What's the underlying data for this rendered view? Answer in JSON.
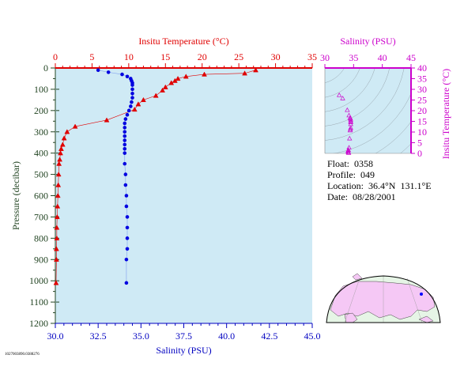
{
  "info": {
    "float_label": "Float:",
    "float_value": "0358",
    "profile_label": "Profile:",
    "profile_value": "049",
    "location_label": "Location:",
    "location_value": "36.4°N  131.1°E",
    "date_label": "Date:",
    "date_value": "08/28/2001"
  },
  "id_tag": "1027003890.0388276",
  "colors": {
    "plot_bg": "#cfeaf5",
    "temperature": "#e00000",
    "salinity": "#0000e0",
    "pressure_axis": "#224422",
    "bottom_axis": "#0000c0",
    "salinity_inset": "#cc00cc",
    "map_land": "#f5c8f5",
    "map_ocean": "#e6f5e6"
  },
  "chart_data": [
    {
      "type": "scatter",
      "name": "profile",
      "ylabel": "Pressure (decibar)",
      "ylim": [
        0,
        1200
      ],
      "y_ticks": [
        0,
        100,
        200,
        300,
        400,
        500,
        600,
        700,
        800,
        900,
        1000,
        1100,
        1200
      ],
      "y_inverted": true,
      "top_axis": {
        "label": "Insitu Temperature (°C)",
        "range": [
          0,
          35
        ],
        "ticks": [
          0,
          5,
          10,
          15,
          20,
          25,
          30,
          35
        ]
      },
      "bottom_axis": {
        "label": "Salinity (PSU)",
        "range": [
          30,
          45
        ],
        "ticks": [
          "30.0",
          "32.5",
          "35.0",
          "37.5",
          "40.0",
          "42.5",
          "45.0"
        ]
      },
      "series": [
        {
          "name": "Insitu Temperature",
          "marker": "triangle",
          "points": [
            {
              "t": 27.3,
              "p": 10
            },
            {
              "t": 25.8,
              "p": 25
            },
            {
              "t": 20.3,
              "p": 30
            },
            {
              "t": 17.8,
              "p": 40
            },
            {
              "t": 16.7,
              "p": 50
            },
            {
              "t": 16.3,
              "p": 60
            },
            {
              "t": 15.8,
              "p": 70
            },
            {
              "t": 15.0,
              "p": 90
            },
            {
              "t": 14.6,
              "p": 105
            },
            {
              "t": 13.7,
              "p": 130
            },
            {
              "t": 12.0,
              "p": 150
            },
            {
              "t": 11.3,
              "p": 170
            },
            {
              "t": 10.8,
              "p": 195
            },
            {
              "t": 7.0,
              "p": 245
            },
            {
              "t": 2.7,
              "p": 275
            },
            {
              "t": 1.6,
              "p": 300
            },
            {
              "t": 1.2,
              "p": 330
            },
            {
              "t": 1.0,
              "p": 360
            },
            {
              "t": 0.8,
              "p": 380
            },
            {
              "t": 0.7,
              "p": 400
            },
            {
              "t": 0.6,
              "p": 430
            },
            {
              "t": 0.5,
              "p": 450
            },
            {
              "t": 0.45,
              "p": 500
            },
            {
              "t": 0.4,
              "p": 550
            },
            {
              "t": 0.35,
              "p": 600
            },
            {
              "t": 0.3,
              "p": 650
            },
            {
              "t": 0.25,
              "p": 700
            },
            {
              "t": 0.2,
              "p": 750
            },
            {
              "t": 0.2,
              "p": 800
            },
            {
              "t": 0.15,
              "p": 850
            },
            {
              "t": 0.15,
              "p": 900
            },
            {
              "t": 0.1,
              "p": 1010
            }
          ]
        },
        {
          "name": "Salinity",
          "marker": "circle",
          "points": [
            {
              "s": 32.5,
              "p": 10
            },
            {
              "s": 33.1,
              "p": 20
            },
            {
              "s": 33.9,
              "p": 30
            },
            {
              "s": 34.2,
              "p": 40
            },
            {
              "s": 34.4,
              "p": 50
            },
            {
              "s": 34.45,
              "p": 60
            },
            {
              "s": 34.5,
              "p": 70
            },
            {
              "s": 34.5,
              "p": 80
            },
            {
              "s": 34.5,
              "p": 100
            },
            {
              "s": 34.5,
              "p": 120
            },
            {
              "s": 34.5,
              "p": 140
            },
            {
              "s": 34.45,
              "p": 160
            },
            {
              "s": 34.4,
              "p": 180
            },
            {
              "s": 34.3,
              "p": 200
            },
            {
              "s": 34.2,
              "p": 220
            },
            {
              "s": 34.1,
              "p": 240
            },
            {
              "s": 34.05,
              "p": 260
            },
            {
              "s": 34.05,
              "p": 280
            },
            {
              "s": 34.05,
              "p": 300
            },
            {
              "s": 34.05,
              "p": 320
            },
            {
              "s": 34.05,
              "p": 340
            },
            {
              "s": 34.05,
              "p": 360
            },
            {
              "s": 34.05,
              "p": 380
            },
            {
              "s": 34.05,
              "p": 400
            },
            {
              "s": 34.05,
              "p": 450
            },
            {
              "s": 34.1,
              "p": 500
            },
            {
              "s": 34.1,
              "p": 550
            },
            {
              "s": 34.15,
              "p": 600
            },
            {
              "s": 34.15,
              "p": 650
            },
            {
              "s": 34.2,
              "p": 700
            },
            {
              "s": 34.2,
              "p": 750
            },
            {
              "s": 34.2,
              "p": 800
            },
            {
              "s": 34.2,
              "p": 850
            },
            {
              "s": 34.15,
              "p": 900
            },
            {
              "s": 34.15,
              "p": 1010
            }
          ]
        }
      ]
    },
    {
      "type": "scatter",
      "name": "ts_diagram",
      "top_axis": {
        "label": "Salinity (PSU)",
        "range": [
          30,
          45
        ],
        "ticks": [
          30,
          35,
          40,
          45
        ]
      },
      "right_axis": {
        "label": "Insitu Temperature (°C)",
        "range": [
          0,
          40
        ],
        "ticks": [
          0,
          5,
          10,
          15,
          20,
          25,
          30,
          35,
          40
        ]
      },
      "points": [
        {
          "s": 32.5,
          "t": 27.3
        },
        {
          "s": 33.1,
          "t": 25.8
        },
        {
          "s": 33.9,
          "t": 20.3
        },
        {
          "s": 34.2,
          "t": 17.8
        },
        {
          "s": 34.4,
          "t": 16.7
        },
        {
          "s": 34.45,
          "t": 16.3
        },
        {
          "s": 34.5,
          "t": 15.8
        },
        {
          "s": 34.5,
          "t": 15.0
        },
        {
          "s": 34.5,
          "t": 14.6
        },
        {
          "s": 34.5,
          "t": 13.7
        },
        {
          "s": 34.5,
          "t": 12.0
        },
        {
          "s": 34.45,
          "t": 11.3
        },
        {
          "s": 34.4,
          "t": 10.8
        },
        {
          "s": 34.3,
          "t": 7.0
        },
        {
          "s": 34.2,
          "t": 2.7
        },
        {
          "s": 34.1,
          "t": 1.6
        },
        {
          "s": 34.05,
          "t": 1.2
        },
        {
          "s": 34.05,
          "t": 0.8
        },
        {
          "s": 34.1,
          "t": 0.4
        },
        {
          "s": 34.15,
          "t": 0.2
        }
      ]
    }
  ]
}
